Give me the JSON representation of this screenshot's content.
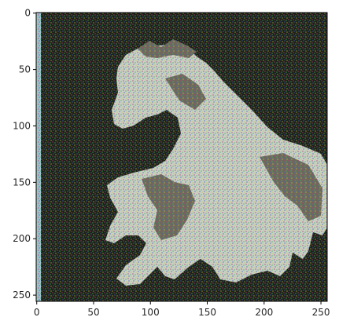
{
  "figure": {
    "description_visible": "noisy horse image rendered with matplotlib imshow",
    "image_shape": [
      256,
      256
    ],
    "x_axis": {
      "range": [
        0,
        256
      ],
      "ticks": [
        {
          "value": 0,
          "label": "0"
        },
        {
          "value": 50,
          "label": "50"
        },
        {
          "value": 100,
          "label": "100"
        },
        {
          "value": 150,
          "label": "150"
        },
        {
          "value": 200,
          "label": "200"
        },
        {
          "value": 250,
          "label": "250"
        }
      ]
    },
    "y_axis": {
      "range": [
        0,
        256
      ],
      "inverted": true,
      "ticks": [
        {
          "value": 0,
          "label": "0"
        },
        {
          "value": 50,
          "label": "50"
        },
        {
          "value": 100,
          "label": "100"
        },
        {
          "value": 150,
          "label": "150"
        },
        {
          "value": 200,
          "label": "200"
        },
        {
          "value": 250,
          "label": "250"
        }
      ]
    },
    "colors": {
      "background_dark": "#1d2218",
      "horse_light": "#c9d0c4",
      "horse_shadow": "#6d6a5c",
      "left_strip": "#9fc3cc",
      "axis": "#000000"
    }
  }
}
